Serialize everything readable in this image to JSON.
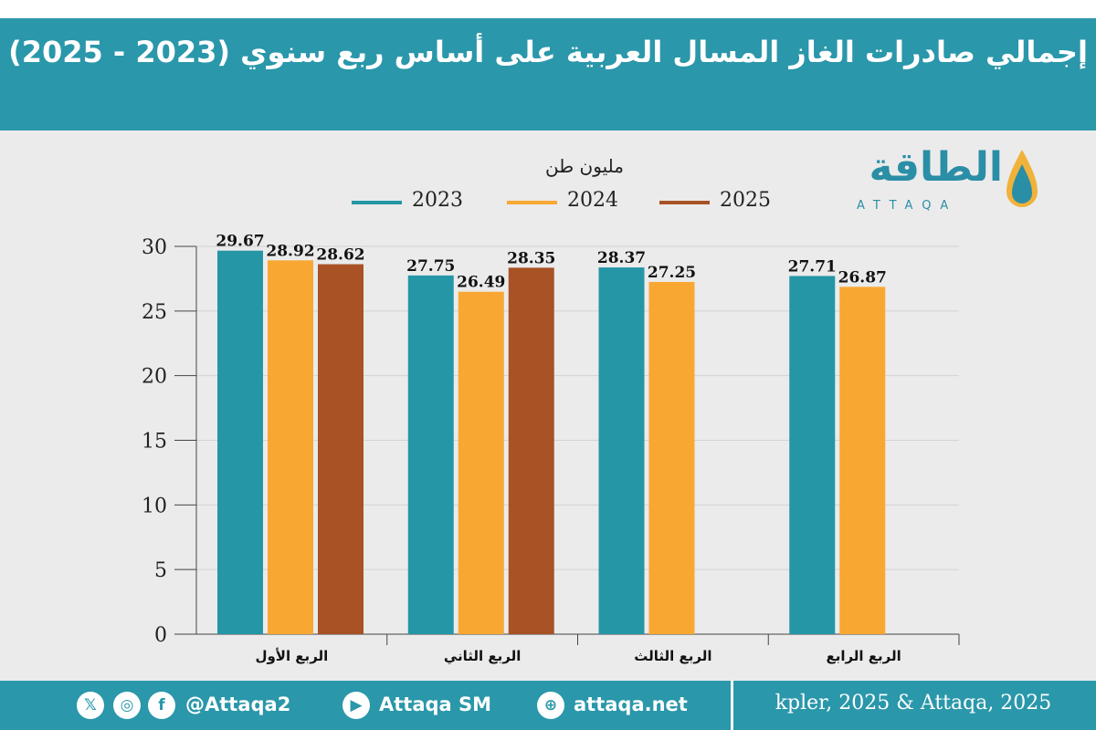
{
  "title": "إجمالي صادرات الغاز المسال العربية على أساس ربع سنوي (2023 - 2025)",
  "logo": {
    "ar": "الطاقة",
    "en": "ATTAQA"
  },
  "footer": {
    "handle": "@Attaqa2",
    "youtube": "Attaqa SM",
    "website": "attaqa.net",
    "source": "kpler, 2025 & Attaqa, 2025",
    "icons": [
      "x-icon",
      "instagram-icon",
      "facebook-icon",
      "youtube-icon",
      "globe-icon"
    ]
  },
  "colors": {
    "2023": "#2596a6",
    "2024": "#f8a832",
    "2025": "#a85225",
    "header": "#2a97aa"
  },
  "chart_data": {
    "type": "bar",
    "unit_label": "مليون طن",
    "categories": [
      "الربع الأول",
      "الربع الثاني",
      "الربع الثالث",
      "الربع الرابع"
    ],
    "series": [
      {
        "name": "2023",
        "values": [
          29.67,
          27.75,
          28.37,
          27.71
        ]
      },
      {
        "name": "2024",
        "values": [
          28.92,
          26.49,
          27.25,
          26.87
        ]
      },
      {
        "name": "2025",
        "values": [
          28.62,
          28.35,
          null,
          null
        ]
      }
    ],
    "y_ticks": [
      0,
      5,
      10,
      15,
      20,
      25,
      30
    ],
    "ylim": [
      0,
      30
    ],
    "grid": true,
    "legend": "top"
  }
}
